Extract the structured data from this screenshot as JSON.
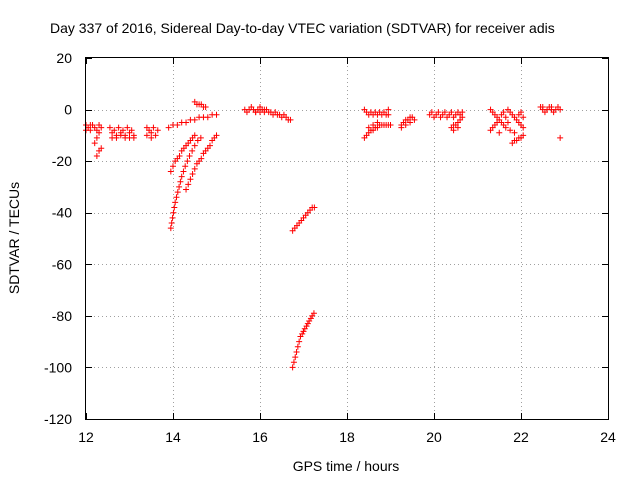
{
  "chart_data": {
    "type": "scatter",
    "title": "Day 337 of 2016, Sidereal Day-to-day VTEC variation (SDTVAR) for receiver adis",
    "xlabel": "GPS time / hours",
    "ylabel": "SDTVAR / TECUs",
    "xlim": [
      12,
      24
    ],
    "ylim": [
      -120,
      20
    ],
    "xticks": [
      12,
      14,
      16,
      18,
      20,
      22,
      24
    ],
    "yticks": [
      20,
      0,
      -20,
      -40,
      -60,
      -80,
      -100,
      -120
    ],
    "grid": true,
    "marker": "plus",
    "series_color": "#ff0000",
    "series": [
      {
        "name": "SDTVAR",
        "points": [
          [
            12.0,
            -6
          ],
          [
            12.05,
            -7
          ],
          [
            12.1,
            -8
          ],
          [
            12.15,
            -6
          ],
          [
            12.2,
            -7
          ],
          [
            12.25,
            -8
          ],
          [
            12.3,
            -6
          ],
          [
            12.35,
            -7
          ],
          [
            12.0,
            -8
          ],
          [
            12.1,
            -6
          ],
          [
            12.2,
            -13
          ],
          [
            12.25,
            -11
          ],
          [
            12.3,
            -9
          ],
          [
            12.25,
            -18
          ],
          [
            12.3,
            -16
          ],
          [
            12.35,
            -15
          ],
          [
            12.55,
            -7
          ],
          [
            12.6,
            -9
          ],
          [
            12.65,
            -8
          ],
          [
            12.7,
            -10
          ],
          [
            12.75,
            -7
          ],
          [
            12.8,
            -9
          ],
          [
            12.85,
            -8
          ],
          [
            12.9,
            -10
          ],
          [
            12.95,
            -7
          ],
          [
            13.0,
            -9
          ],
          [
            13.05,
            -8
          ],
          [
            13.1,
            -10
          ],
          [
            12.6,
            -11
          ],
          [
            12.7,
            -11
          ],
          [
            12.8,
            -10
          ],
          [
            12.9,
            -11
          ],
          [
            13.0,
            -11
          ],
          [
            13.1,
            -11
          ],
          [
            13.4,
            -7
          ],
          [
            13.45,
            -8
          ],
          [
            13.5,
            -9
          ],
          [
            13.55,
            -7
          ],
          [
            13.6,
            -10
          ],
          [
            13.65,
            -8
          ],
          [
            13.4,
            -10
          ],
          [
            13.5,
            -11
          ],
          [
            13.95,
            -46
          ],
          [
            13.97,
            -44
          ],
          [
            13.99,
            -42
          ],
          [
            14.01,
            -40
          ],
          [
            14.03,
            -38
          ],
          [
            14.05,
            -36
          ],
          [
            14.08,
            -34
          ],
          [
            14.11,
            -32
          ],
          [
            14.14,
            -30
          ],
          [
            14.17,
            -28
          ],
          [
            14.2,
            -26
          ],
          [
            14.24,
            -24
          ],
          [
            14.28,
            -22
          ],
          [
            14.33,
            -20
          ],
          [
            14.38,
            -18
          ],
          [
            14.44,
            -16
          ],
          [
            14.5,
            -14
          ],
          [
            14.57,
            -12
          ],
          [
            14.64,
            -11
          ],
          [
            13.95,
            -24
          ],
          [
            14.0,
            -22
          ],
          [
            14.05,
            -20
          ],
          [
            14.1,
            -19
          ],
          [
            14.15,
            -18
          ],
          [
            14.2,
            -16
          ],
          [
            14.25,
            -15
          ],
          [
            14.3,
            -14
          ],
          [
            14.35,
            -13
          ],
          [
            14.4,
            -12
          ],
          [
            14.45,
            -11
          ],
          [
            14.5,
            -10
          ],
          [
            14.3,
            -31
          ],
          [
            14.35,
            -29
          ],
          [
            14.4,
            -27
          ],
          [
            14.45,
            -25
          ],
          [
            14.5,
            -23
          ],
          [
            14.55,
            -21
          ],
          [
            14.6,
            -20
          ],
          [
            14.65,
            -19
          ],
          [
            14.7,
            -17
          ],
          [
            14.75,
            -16
          ],
          [
            14.8,
            -15
          ],
          [
            14.85,
            -14
          ],
          [
            14.9,
            -12
          ],
          [
            14.95,
            -11
          ],
          [
            15.0,
            -10
          ],
          [
            13.9,
            -7
          ],
          [
            14.0,
            -6
          ],
          [
            14.1,
            -6
          ],
          [
            14.2,
            -5
          ],
          [
            14.3,
            -5
          ],
          [
            14.4,
            -4
          ],
          [
            14.5,
            -4
          ],
          [
            14.6,
            -3
          ],
          [
            14.7,
            -3
          ],
          [
            14.8,
            -3
          ],
          [
            14.9,
            -2
          ],
          [
            15.0,
            -2
          ],
          [
            14.5,
            3
          ],
          [
            14.55,
            2
          ],
          [
            14.6,
            2
          ],
          [
            14.65,
            2
          ],
          [
            14.7,
            1
          ],
          [
            14.75,
            1
          ],
          [
            15.65,
            0
          ],
          [
            15.7,
            -1
          ],
          [
            15.75,
            0
          ],
          [
            15.8,
            1
          ],
          [
            15.85,
            0
          ],
          [
            15.9,
            -1
          ],
          [
            15.95,
            0
          ],
          [
            16.0,
            -1
          ],
          [
            16.05,
            0
          ],
          [
            16.1,
            -1
          ],
          [
            16.15,
            0
          ],
          [
            16.2,
            -1
          ],
          [
            16.25,
            -1
          ],
          [
            16.3,
            -2
          ],
          [
            16.35,
            -1
          ],
          [
            16.4,
            -2
          ],
          [
            16.45,
            -2
          ],
          [
            16.5,
            -3
          ],
          [
            16.55,
            -2
          ],
          [
            16.6,
            -3
          ],
          [
            16.65,
            -4
          ],
          [
            16.7,
            -4
          ],
          [
            15.9,
            -1
          ],
          [
            16.0,
            1
          ],
          [
            16.1,
            0
          ],
          [
            16.75,
            -47
          ],
          [
            16.8,
            -46
          ],
          [
            16.85,
            -45
          ],
          [
            16.9,
            -44
          ],
          [
            16.95,
            -43
          ],
          [
            17.0,
            -42
          ],
          [
            17.05,
            -41
          ],
          [
            17.1,
            -40
          ],
          [
            17.15,
            -39
          ],
          [
            17.2,
            -38
          ],
          [
            17.25,
            -38
          ],
          [
            16.75,
            -100
          ],
          [
            16.78,
            -98
          ],
          [
            16.81,
            -96
          ],
          [
            16.84,
            -94
          ],
          [
            16.87,
            -92
          ],
          [
            16.9,
            -90
          ],
          [
            16.93,
            -88
          ],
          [
            16.97,
            -87
          ],
          [
            17.0,
            -86
          ],
          [
            17.03,
            -85
          ],
          [
            17.07,
            -84
          ],
          [
            17.1,
            -83
          ],
          [
            17.13,
            -82
          ],
          [
            17.17,
            -81
          ],
          [
            17.2,
            -80
          ],
          [
            17.24,
            -79
          ],
          [
            18.4,
            0
          ],
          [
            18.45,
            -1
          ],
          [
            18.5,
            -2
          ],
          [
            18.55,
            -1
          ],
          [
            18.6,
            -2
          ],
          [
            18.65,
            -1
          ],
          [
            18.7,
            -2
          ],
          [
            18.75,
            -1
          ],
          [
            18.8,
            -2
          ],
          [
            18.85,
            -1
          ],
          [
            18.9,
            -2
          ],
          [
            18.95,
            0
          ],
          [
            18.4,
            -11
          ],
          [
            18.45,
            -10
          ],
          [
            18.5,
            -9
          ],
          [
            18.55,
            -8
          ],
          [
            18.6,
            -8
          ],
          [
            18.65,
            -7
          ],
          [
            18.7,
            -7
          ],
          [
            18.75,
            -6
          ],
          [
            18.8,
            -6
          ],
          [
            18.85,
            -6
          ],
          [
            18.9,
            -6
          ],
          [
            18.95,
            -6
          ],
          [
            19.0,
            -6
          ],
          [
            18.5,
            -7
          ],
          [
            18.6,
            -6
          ],
          [
            18.7,
            -5
          ],
          [
            18.95,
            -2
          ],
          [
            19.25,
            -6
          ],
          [
            19.3,
            -5
          ],
          [
            19.35,
            -4
          ],
          [
            19.4,
            -4
          ],
          [
            19.45,
            -3
          ],
          [
            19.5,
            -3
          ],
          [
            19.55,
            -4
          ],
          [
            19.25,
            -7
          ],
          [
            19.35,
            -6
          ],
          [
            19.45,
            -5
          ],
          [
            19.9,
            -2
          ],
          [
            19.95,
            -1
          ],
          [
            20.0,
            -3
          ],
          [
            20.05,
            -2
          ],
          [
            20.1,
            -1
          ],
          [
            20.15,
            -3
          ],
          [
            20.2,
            -2
          ],
          [
            20.25,
            -1
          ],
          [
            20.3,
            -3
          ],
          [
            20.35,
            -2
          ],
          [
            20.4,
            -1
          ],
          [
            20.45,
            -3
          ],
          [
            20.5,
            -2
          ],
          [
            20.55,
            -1
          ],
          [
            20.6,
            -2
          ],
          [
            20.65,
            -1
          ],
          [
            20.4,
            -7
          ],
          [
            20.45,
            -8
          ],
          [
            20.5,
            -6
          ],
          [
            20.55,
            -5
          ],
          [
            20.6,
            -4
          ],
          [
            20.65,
            -3
          ],
          [
            20.45,
            -6
          ],
          [
            20.55,
            -7
          ],
          [
            21.3,
            0
          ],
          [
            21.35,
            -1
          ],
          [
            21.4,
            -2
          ],
          [
            21.45,
            -3
          ],
          [
            21.5,
            -4
          ],
          [
            21.55,
            -5
          ],
          [
            21.6,
            -6
          ],
          [
            21.65,
            -7
          ],
          [
            21.3,
            -8
          ],
          [
            21.35,
            -7
          ],
          [
            21.4,
            -6
          ],
          [
            21.45,
            -5
          ],
          [
            21.5,
            -9
          ],
          [
            21.55,
            -2
          ],
          [
            21.6,
            -1
          ],
          [
            21.65,
            -3
          ],
          [
            21.7,
            0
          ],
          [
            21.75,
            -1
          ],
          [
            21.8,
            -2
          ],
          [
            21.85,
            -3
          ],
          [
            21.9,
            -4
          ],
          [
            21.95,
            -5
          ],
          [
            22.0,
            -6
          ],
          [
            22.05,
            -7
          ],
          [
            21.75,
            -8
          ],
          [
            21.85,
            -9
          ],
          [
            21.95,
            -2
          ],
          [
            22.0,
            -1
          ],
          [
            22.05,
            -3
          ],
          [
            21.7,
            -5
          ],
          [
            21.8,
            -13
          ],
          [
            21.85,
            -12
          ],
          [
            21.9,
            -12
          ],
          [
            21.95,
            -11
          ],
          [
            22.0,
            -11
          ],
          [
            22.05,
            -10
          ],
          [
            22.45,
            1
          ],
          [
            22.5,
            0
          ],
          [
            22.55,
            -1
          ],
          [
            22.6,
            0
          ],
          [
            22.65,
            1
          ],
          [
            22.7,
            0
          ],
          [
            22.75,
            -1
          ],
          [
            22.8,
            0
          ],
          [
            22.85,
            1
          ],
          [
            22.9,
            0
          ],
          [
            22.5,
            1
          ],
          [
            22.7,
            1
          ],
          [
            22.9,
            -11
          ]
        ]
      }
    ]
  }
}
